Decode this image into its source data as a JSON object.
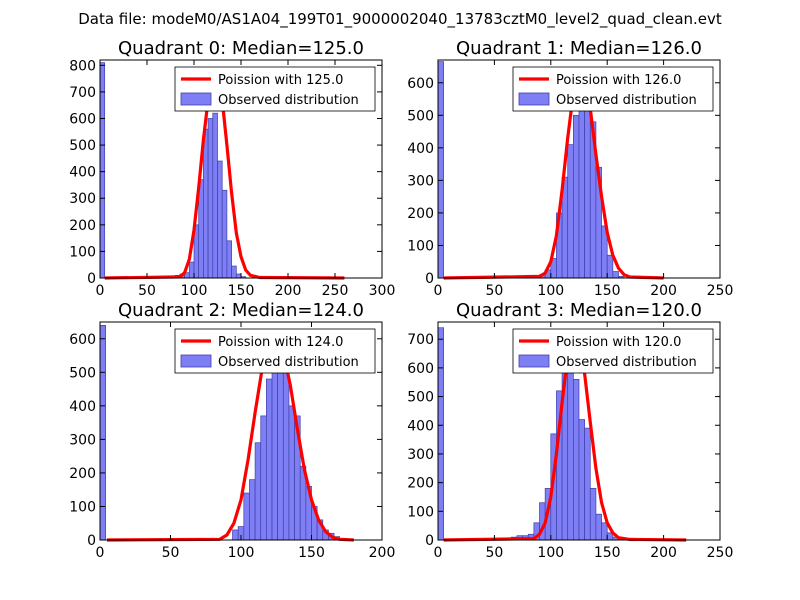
{
  "figure_title": "Data file: modeM0/AS1A04_199T01_9000002040_13783cztM0_level2_quad_clean.evt",
  "colors": {
    "hist_fill": "#7f7ff5",
    "hist_edge": "#3f3fa8",
    "poisson": "#ff0000"
  },
  "chart_data": [
    {
      "type": "bar",
      "title": "Quadrant 0: Median=125.0",
      "median": 125.0,
      "xlim": [
        0,
        300
      ],
      "ylim": [
        0,
        820
      ],
      "xticks": [
        0,
        50,
        100,
        150,
        200,
        250,
        300
      ],
      "yticks": [
        0,
        100,
        200,
        300,
        400,
        500,
        600,
        700,
        800
      ],
      "bin_width": 5,
      "hist": {
        "edges": [
          0,
          75,
          80,
          85,
          90,
          95,
          100,
          105,
          110,
          115,
          120,
          125,
          130,
          135,
          140,
          145,
          150
        ],
        "values": [
          810,
          5,
          10,
          15,
          20,
          60,
          200,
          370,
          560,
          600,
          620,
          440,
          330,
          140,
          45,
          15,
          5
        ]
      },
      "poisson": {
        "label": "Poission with 125.0",
        "x": [
          5,
          85,
          90,
          95,
          100,
          105,
          110,
          115,
          120,
          125,
          130,
          135,
          140,
          145,
          150,
          155,
          160,
          170,
          260
        ],
        "y": [
          0,
          4,
          20,
          70,
          180,
          340,
          520,
          670,
          770,
          780,
          670,
          500,
          320,
          170,
          80,
          30,
          10,
          2,
          0
        ]
      },
      "legend": {
        "location": "upper right",
        "entries": [
          "Poission with 125.0",
          "Observed distribution"
        ]
      }
    },
    {
      "type": "bar",
      "title": "Quadrant 1: Median=126.0",
      "median": 126.0,
      "xlim": [
        0,
        250
      ],
      "ylim": [
        0,
        670
      ],
      "xticks": [
        0,
        50,
        100,
        150,
        200,
        250
      ],
      "yticks": [
        0,
        100,
        200,
        300,
        400,
        500,
        600
      ],
      "bin_width": 5,
      "hist": {
        "edges": [
          0,
          60,
          65,
          90,
          95,
          100,
          105,
          110,
          115,
          120,
          125,
          130,
          135,
          140,
          145,
          150,
          155,
          160
        ],
        "values": [
          665,
          5,
          0,
          10,
          25,
          60,
          200,
          310,
          410,
          500,
          570,
          550,
          480,
          340,
          160,
          70,
          20,
          5
        ]
      },
      "poisson": {
        "label": "Poission with 126.0",
        "x": [
          5,
          90,
          95,
          100,
          105,
          110,
          115,
          120,
          125,
          130,
          135,
          140,
          145,
          150,
          155,
          160,
          165,
          170,
          200
        ],
        "y": [
          0,
          5,
          15,
          50,
          130,
          270,
          430,
          570,
          640,
          620,
          520,
          380,
          250,
          140,
          70,
          30,
          10,
          3,
          0
        ]
      },
      "legend": {
        "location": "upper right",
        "entries": [
          "Poission with 126.0",
          "Observed distribution"
        ]
      }
    },
    {
      "type": "bar",
      "title": "Quadrant 2: Median=124.0",
      "median": 124.0,
      "xlim": [
        0,
        200
      ],
      "ylim": [
        0,
        650
      ],
      "xticks": [
        0,
        50,
        100,
        150,
        200
      ],
      "yticks": [
        0,
        100,
        200,
        300,
        400,
        500,
        600
      ],
      "bin_width": 4,
      "hist": {
        "edges": [
          0,
          70,
          74,
          94,
          98,
          102,
          106,
          110,
          114,
          118,
          122,
          126,
          130,
          134,
          138,
          142,
          146,
          150,
          154,
          158,
          162,
          166,
          170,
          174
        ],
        "values": [
          640,
          5,
          0,
          30,
          40,
          140,
          180,
          290,
          370,
          480,
          560,
          600,
          500,
          400,
          370,
          220,
          160,
          100,
          60,
          30,
          20,
          10,
          5
        ]
      },
      "poisson": {
        "label": "Poission with 124.0",
        "x": [
          5,
          85,
          90,
          95,
          100,
          105,
          110,
          115,
          120,
          125,
          130,
          135,
          140,
          145,
          150,
          155,
          160,
          165,
          170,
          180
        ],
        "y": [
          0,
          2,
          15,
          50,
          120,
          240,
          380,
          510,
          590,
          610,
          560,
          460,
          330,
          210,
          120,
          60,
          25,
          8,
          2,
          0
        ]
      },
      "legend": {
        "location": "upper right",
        "entries": [
          "Poission with 124.0",
          "Observed distribution"
        ]
      }
    },
    {
      "type": "bar",
      "title": "Quadrant 3: Median=120.0",
      "median": 120.0,
      "xlim": [
        0,
        250
      ],
      "ylim": [
        0,
        760
      ],
      "xticks": [
        0,
        50,
        100,
        150,
        200,
        250
      ],
      "yticks": [
        0,
        100,
        200,
        300,
        400,
        500,
        600,
        700
      ],
      "bin_width": 5,
      "hist": {
        "edges": [
          0,
          65,
          70,
          75,
          80,
          85,
          90,
          95,
          100,
          105,
          110,
          115,
          120,
          125,
          130,
          135,
          140,
          145,
          150,
          155,
          160
        ],
        "values": [
          740,
          10,
          15,
          15,
          20,
          60,
          130,
          180,
          370,
          520,
          620,
          700,
          560,
          420,
          390,
          180,
          90,
          60,
          25,
          10,
          5
        ]
      },
      "poisson": {
        "label": "Poission with 120.0",
        "x": [
          5,
          85,
          90,
          95,
          100,
          105,
          110,
          115,
          120,
          125,
          130,
          135,
          140,
          145,
          150,
          155,
          160,
          170,
          220
        ],
        "y": [
          0,
          5,
          20,
          60,
          150,
          300,
          480,
          640,
          720,
          700,
          580,
          410,
          250,
          130,
          60,
          25,
          8,
          2,
          0
        ]
      },
      "legend": {
        "location": "upper right",
        "entries": [
          "Poission with 120.0",
          "Observed distribution"
        ]
      }
    }
  ]
}
